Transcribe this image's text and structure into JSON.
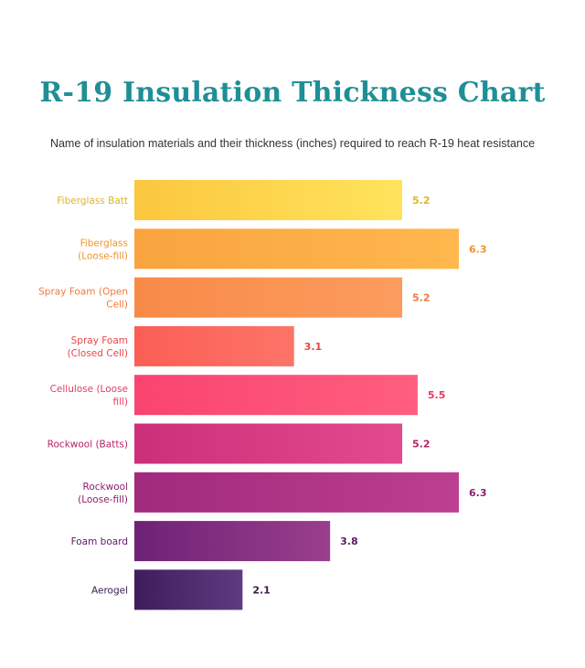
{
  "chart_data": {
    "type": "bar",
    "orientation": "horizontal",
    "title": "R-19 Insulation Thickness Chart",
    "subtitle": "Name of insulation materials and their thickness (inches) required to reach R-19 heat resistance",
    "categories": [
      "Fiberglass Batt",
      "Fiberglass (Loose-fill)",
      "Spray Foam (Open Cell)",
      "Spray Foam (Closed Cell)",
      "Cellulose (Loose fill)",
      "Rockwool (Batts)",
      "Rockwool (Loose-fill)",
      "Foam board",
      "Aerogel"
    ],
    "values": [
      5.2,
      6.3,
      5.2,
      3.1,
      5.5,
      5.2,
      6.3,
      3.8,
      2.1
    ],
    "value_labels": [
      "5.2",
      "6.3",
      "5.2",
      "3.1",
      "5.5",
      "5.2",
      "6.3",
      "3.8",
      "2.1"
    ],
    "xlim": [
      0,
      6.3
    ],
    "grid": false,
    "legend": "none",
    "colors": [
      [
        "#fbc73e",
        "#ffe35c"
      ],
      [
        "#f9a43f",
        "#ffb84d"
      ],
      [
        "#f88a48",
        "#fb9c5e"
      ],
      [
        "#fb5e55",
        "#fd7468"
      ],
      [
        "#f94470",
        "#ff5e80"
      ],
      [
        "#cc2f79",
        "#e24a8e"
      ],
      [
        "#a02a7c",
        "#bd3f90"
      ],
      [
        "#6e2275",
        "#9a3e8d"
      ],
      [
        "#3f1d5c",
        "#5e3b80"
      ]
    ],
    "label_colors": [
      "#e0b428",
      "#ee9430",
      "#ef7a3c",
      "#e84747",
      "#e83a62",
      "#b72368",
      "#8e1f6c",
      "#5a1a62",
      "#351a50"
    ]
  }
}
